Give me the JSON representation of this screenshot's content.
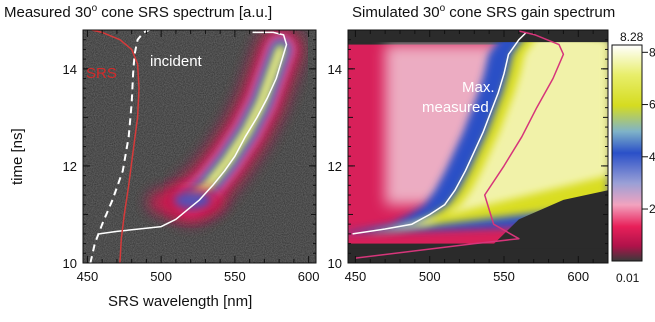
{
  "chart_data": [
    {
      "type": "heatmap",
      "title": "Measured 30",
      "title_sup": "o",
      "title_rest": " cone SRS spectrum [a.u.]",
      "xlabel": "SRS wavelength  [nm]",
      "ylabel": "time  [ns]",
      "xlim": [
        447,
        605
      ],
      "ylim": [
        10,
        14.8
      ],
      "x_ticks": [
        450,
        500,
        550,
        600
      ],
      "x_tick_labels": [
        "450",
        "500",
        "550",
        "600"
      ],
      "y_ticks": [
        10,
        12,
        14
      ],
      "y_tick_labels": [
        "10",
        "12",
        "14"
      ],
      "annotations": [
        "SRS",
        "incident"
      ],
      "annotation_colors": [
        "#d42a2a",
        "#ffffff"
      ],
      "series": [
        {
          "style": "white solid",
          "color": "#ffffff",
          "x": [
            458,
            470,
            485,
            500,
            510,
            518,
            526,
            535,
            543,
            550,
            557,
            565,
            572,
            578,
            582,
            585,
            583,
            576,
            562
          ],
          "y": [
            10.6,
            10.65,
            10.7,
            10.75,
            10.9,
            11.1,
            11.3,
            11.6,
            11.9,
            12.2,
            12.6,
            13.0,
            13.4,
            13.8,
            14.2,
            14.5,
            14.7,
            14.75,
            14.75
          ]
        },
        {
          "style": "white dashed",
          "color": "#ffffff",
          "x": [
            452,
            455,
            460,
            467,
            474,
            478,
            480,
            481,
            482,
            484,
            488,
            492
          ],
          "y": [
            10.0,
            10.4,
            10.8,
            11.3,
            11.9,
            12.6,
            13.3,
            13.9,
            14.3,
            14.6,
            14.75,
            14.8
          ]
        },
        {
          "style": "red solid",
          "color": "#d63a3a",
          "x": [
            472,
            473,
            475,
            478,
            481,
            484,
            485,
            484,
            480,
            472,
            460,
            453
          ],
          "y": [
            10.0,
            10.5,
            11.0,
            11.6,
            12.3,
            13.0,
            13.6,
            14.1,
            14.4,
            14.6,
            14.75,
            14.8
          ]
        }
      ],
      "blob": {
        "description_values": "intensity ridge",
        "x": [
          520,
          532,
          545,
          558,
          568,
          575,
          581
        ],
        "y": [
          11.3,
          11.6,
          12.1,
          12.7,
          13.3,
          13.9,
          14.4
        ]
      }
    },
    {
      "type": "heatmap",
      "title": "Simulated 30",
      "title_sup": "o",
      "title_rest": " cone SRS gain spectrum",
      "xlim": [
        445,
        620
      ],
      "ylim": [
        10,
        14.8
      ],
      "x_ticks": [
        450,
        500,
        550,
        600
      ],
      "x_tick_labels": [
        "450",
        "500",
        "550",
        "600"
      ],
      "y_ticks": [
        10,
        12,
        14
      ],
      "y_tick_labels": [
        "10",
        "12",
        "14"
      ],
      "annotations": [
        "Max.",
        "measured"
      ],
      "annotation_colors": [
        "#ffffff",
        "#ffffff"
      ],
      "series": [
        {
          "style": "white solid",
          "color": "#ffffff",
          "x": [
            448,
            470,
            488,
            500,
            510,
            517,
            524,
            530,
            536,
            541,
            546,
            550,
            553,
            560,
            565
          ],
          "y": [
            10.6,
            10.7,
            10.8,
            11.0,
            11.2,
            11.5,
            11.9,
            12.3,
            12.7,
            13.1,
            13.5,
            13.9,
            14.3,
            14.6,
            14.75
          ]
        },
        {
          "style": "magenta solid",
          "color": "#d6357a",
          "x": [
            450,
            490,
            530,
            545,
            560,
            543,
            537,
            550,
            562,
            572,
            583,
            590,
            587,
            571,
            560
          ],
          "y": [
            10.1,
            10.25,
            10.4,
            10.45,
            10.5,
            10.8,
            11.4,
            12.0,
            12.6,
            13.2,
            13.8,
            14.3,
            14.5,
            14.7,
            14.78
          ]
        }
      ],
      "colorbar": {
        "min": 0.01,
        "max": 8.28,
        "min_label": "0.01",
        "max_label": "8.28",
        "ticks": [
          2,
          4,
          6,
          8
        ],
        "tick_labels": [
          "2",
          "4",
          "6",
          "8"
        ]
      }
    }
  ]
}
